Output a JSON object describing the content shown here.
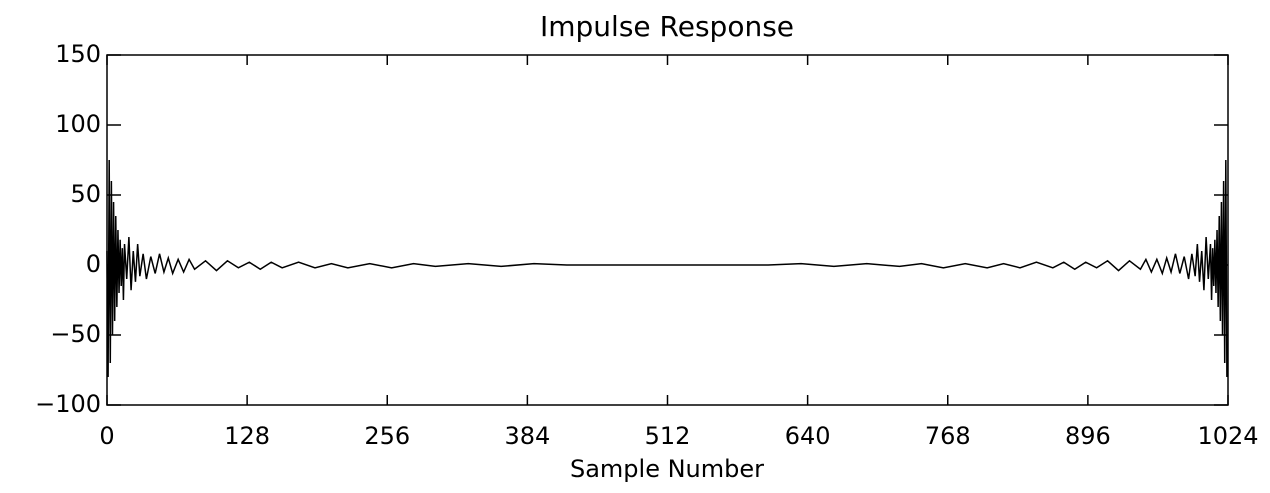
{
  "chart_data": {
    "type": "line",
    "title": "Impulse Response",
    "x_label": "Sample Number",
    "x": [
      0,
      1,
      2,
      3,
      4,
      5,
      6,
      7,
      8,
      9,
      10,
      11,
      12,
      13,
      14,
      15,
      16,
      18,
      20,
      22,
      24,
      26,
      28,
      30,
      33,
      36,
      40,
      44,
      48,
      52,
      56,
      60,
      65,
      70,
      75,
      80,
      90,
      100,
      110,
      120,
      130,
      140,
      150,
      160,
      175,
      190,
      205,
      220,
      240,
      260,
      280,
      300,
      330,
      360,
      390,
      420,
      450,
      480,
      512,
      544,
      574,
      604,
      634,
      664,
      694,
      724,
      744,
      764,
      784,
      804,
      819,
      834,
      849,
      864,
      874,
      884,
      894,
      904,
      914,
      924,
      934,
      944,
      949,
      954,
      959,
      964,
      968,
      972,
      976,
      980,
      984,
      988,
      991,
      994,
      996,
      998,
      1000,
      1002,
      1004,
      1006,
      1008,
      1009,
      1010,
      1011,
      1012,
      1013,
      1014,
      1015,
      1016,
      1017,
      1018,
      1019,
      1020,
      1021,
      1022,
      1023
    ],
    "series": [
      {
        "color": "#000000",
        "values": [
          10,
          -80,
          75,
          -70,
          60,
          -50,
          45,
          -40,
          35,
          -30,
          25,
          -20,
          18,
          -15,
          12,
          -25,
          15,
          -10,
          20,
          -18,
          10,
          -12,
          15,
          -8,
          8,
          -10,
          6,
          -6,
          8,
          -5,
          5,
          -6,
          4,
          -5,
          4,
          -3,
          3,
          -4,
          3,
          -2,
          2,
          -3,
          2,
          -2,
          2,
          -2,
          1,
          -2,
          1,
          -2,
          1,
          -1,
          1,
          -1,
          1,
          0,
          0,
          0,
          0,
          0,
          0,
          0,
          1,
          -1,
          1,
          -1,
          1,
          -2,
          1,
          -2,
          1,
          -2,
          2,
          -2,
          2,
          -3,
          2,
          -2,
          3,
          -4,
          3,
          -3,
          4,
          -5,
          4,
          -6,
          5,
          -5,
          8,
          -6,
          6,
          -10,
          8,
          -8,
          15,
          -12,
          10,
          -18,
          20,
          -10,
          15,
          -25,
          12,
          -15,
          18,
          -20,
          25,
          -30,
          35,
          -40,
          45,
          -50,
          60,
          -70,
          75,
          -80
        ]
      }
    ],
    "xlim": [
      0,
      1024
    ],
    "xticks": [
      0,
      128,
      256,
      384,
      512,
      640,
      768,
      896,
      1024
    ],
    "ylim": [
      -100,
      150
    ],
    "yticks": [
      {
        "value": -100,
        "label": "−100"
      },
      {
        "value": -50,
        "label": "−50"
      },
      0,
      50,
      100,
      150
    ]
  }
}
